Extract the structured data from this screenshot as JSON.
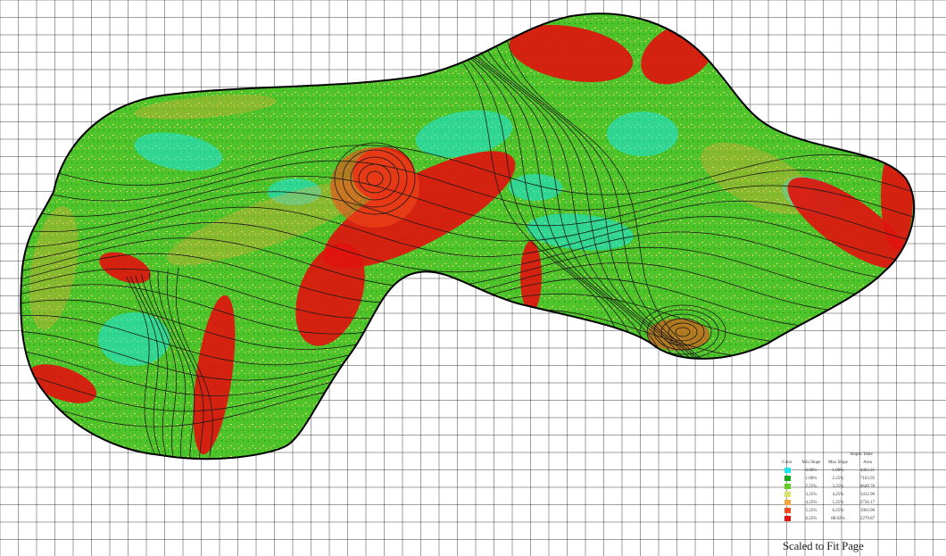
{
  "map": {
    "grid_color": "#000000",
    "boundary_color": "#000000",
    "contour_color": "#1a1a1a",
    "slope_colors": [
      "#19e6e6",
      "#1aa61a",
      "#5fcd1f",
      "#d9e36a",
      "#f2a83a",
      "#f24a1a",
      "#e0140f"
    ]
  },
  "slope_table": {
    "title": "Slopes Table",
    "headers": {
      "color": "Color",
      "min": "Min Slope",
      "max": "Max Slope",
      "area": "Area"
    },
    "rows": [
      {
        "color": "#19e6e6",
        "min": "0.00%",
        "max": "1.00%",
        "area": "4403.21"
      },
      {
        "color": "#1aa61a",
        "min": "1.00%",
        "max": "2.25%",
        "area": "7163.95"
      },
      {
        "color": "#5fcd1f",
        "min": "2.25%",
        "max": "3.25%",
        "area": "8649.78"
      },
      {
        "color": "#d9e36a",
        "min": "3.25%",
        "max": "4.25%",
        "area": "3412.96"
      },
      {
        "color": "#f2a83a",
        "min": "4.25%",
        "max": "5.25%",
        "area": "2726.17"
      },
      {
        "color": "#f24a1a",
        "min": "5.25%",
        "max": "6.25%",
        "area": "1963.96"
      },
      {
        "color": "#e0140f",
        "min": "6.25%",
        "max": "88.02%",
        "area": "2279.87"
      }
    ]
  },
  "footer_label": "Scaled to Fit Page"
}
